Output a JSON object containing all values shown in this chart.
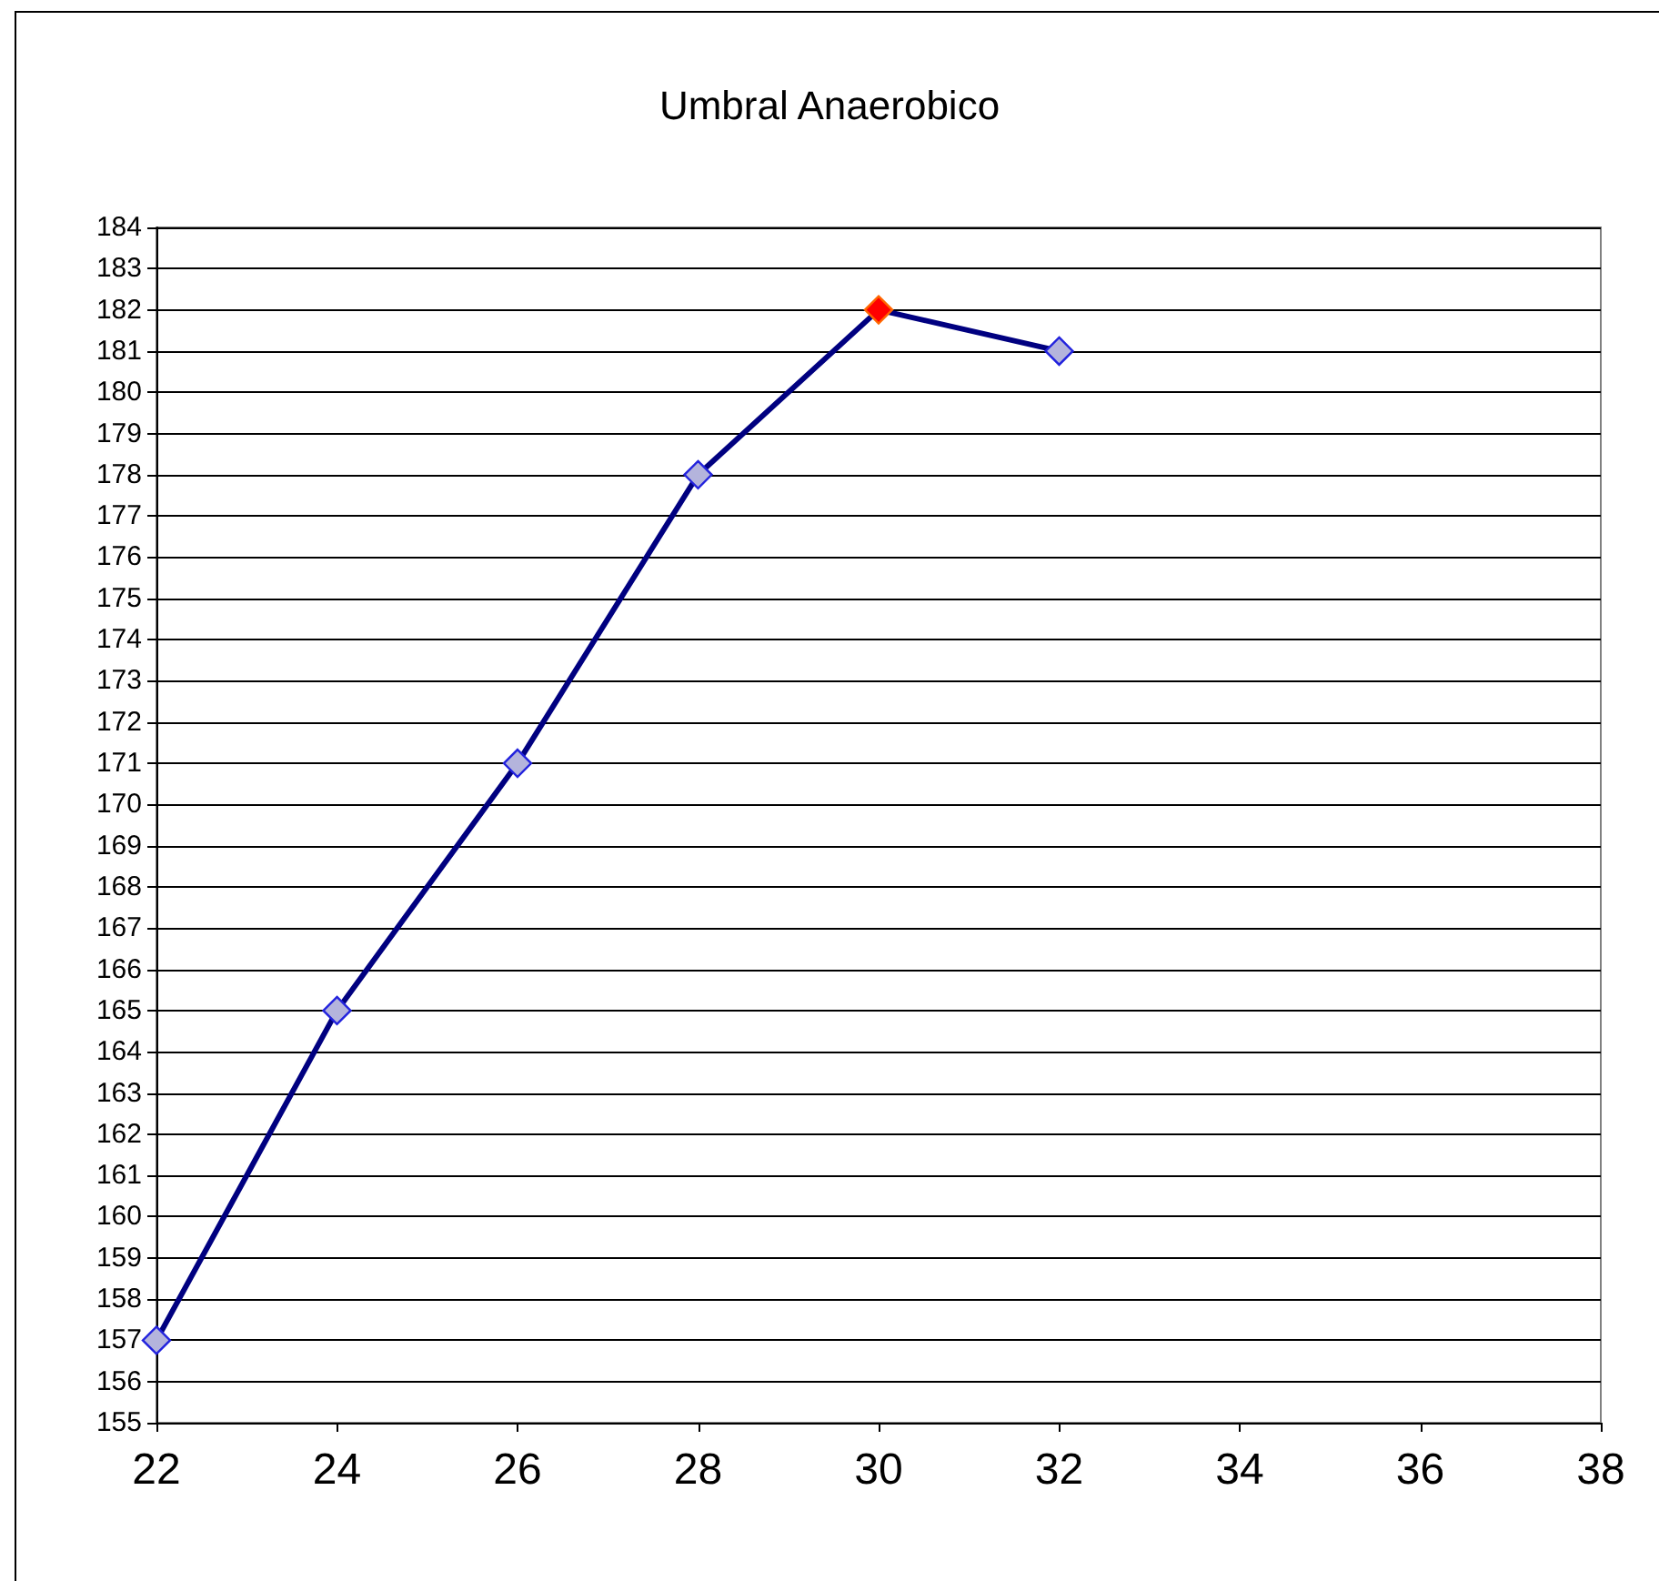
{
  "chart_data": {
    "type": "line",
    "title": "Umbral Anaerobico",
    "x": [
      22,
      24,
      26,
      28,
      30,
      32
    ],
    "series": [
      {
        "color": "#000080",
        "values": [
          157,
          165,
          171,
          178,
          182,
          181
        ],
        "colors": [
          "#b4b4dc",
          "#b4b4dc",
          "#b4b4dc",
          "#b4b4dc",
          "#ff0000",
          "#b4b4dc"
        ]
      }
    ],
    "xlim": [
      22,
      38
    ],
    "xticks": [
      22,
      24,
      26,
      28,
      30,
      32,
      34,
      36,
      38
    ],
    "ylim": [
      155,
      184
    ],
    "yticks": [
      155,
      156,
      157,
      158,
      159,
      160,
      161,
      162,
      163,
      164,
      165,
      166,
      167,
      168,
      169,
      170,
      171,
      172,
      173,
      174,
      175,
      176,
      177,
      178,
      179,
      180,
      181,
      182,
      183,
      184
    ],
    "grid": "y",
    "marker": "diamond",
    "line_style": "solid"
  }
}
